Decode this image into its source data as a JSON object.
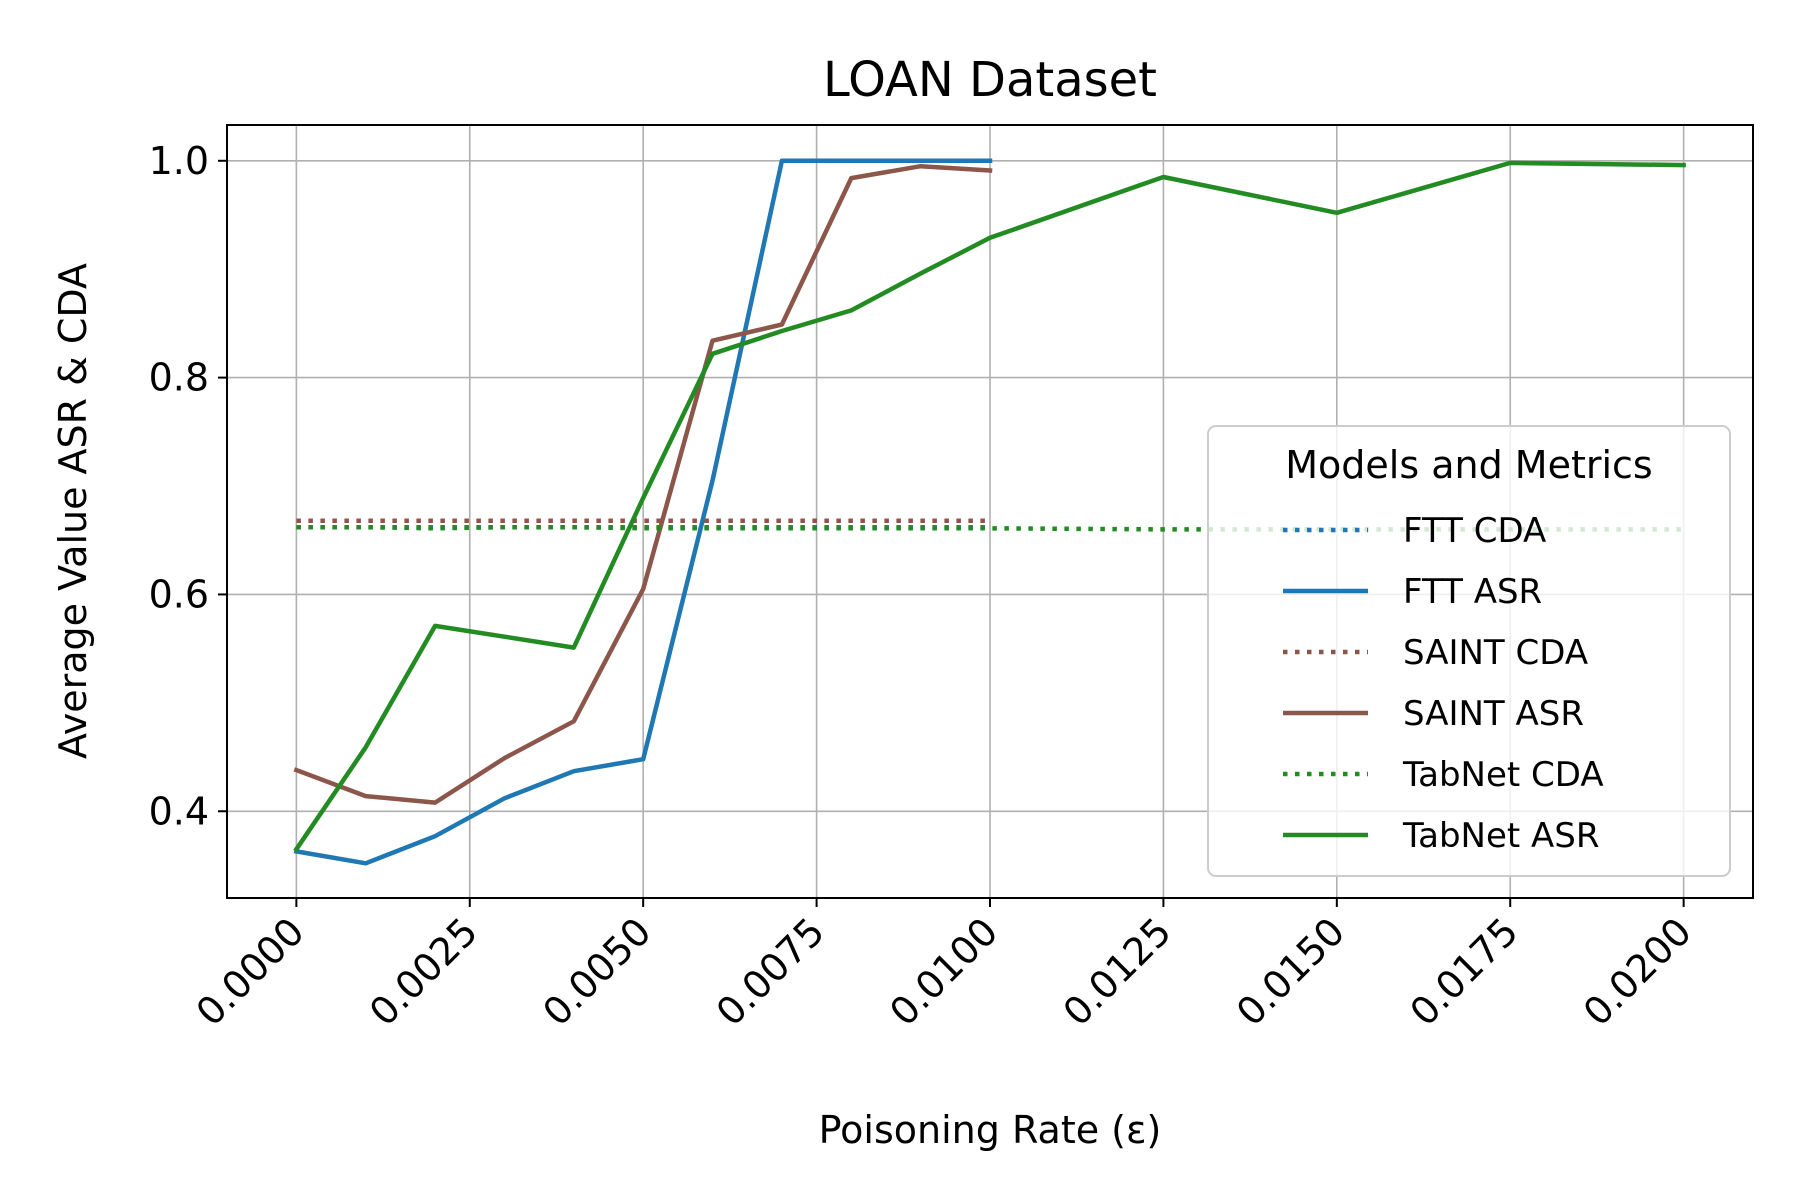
{
  "chart_data": {
    "type": "line",
    "title": "LOAN Dataset",
    "xlabel": "Poisoning Rate (ε)",
    "ylabel": "Average Value ASR & CDA",
    "xlim": [
      -0.001,
      0.021
    ],
    "ylim": [
      0.32,
      1.033
    ],
    "xticks": [
      0.0,
      0.0025,
      0.005,
      0.0075,
      0.01,
      0.0125,
      0.015,
      0.0175,
      0.02
    ],
    "xtick_labels": [
      "0.0000",
      "0.0025",
      "0.0050",
      "0.0075",
      "0.0100",
      "0.0125",
      "0.0150",
      "0.0175",
      "0.0200"
    ],
    "yticks": [
      0.4,
      0.6,
      0.8,
      1.0
    ],
    "ytick_labels": [
      "0.4",
      "0.6",
      "0.8",
      "1.0"
    ],
    "grid": true,
    "legend": {
      "title": "Models and Metrics",
      "placement": "center-right"
    },
    "series": [
      {
        "name": "FTT CDA",
        "style": "dotted",
        "color": "#1f77b4",
        "x": [
          0.0,
          0.001,
          0.002,
          0.003,
          0.004,
          0.005,
          0.006,
          0.007,
          0.008,
          0.009,
          0.01
        ],
        "y": [
          0.662,
          0.662,
          0.662,
          0.662,
          0.662,
          0.662,
          0.662,
          0.662,
          0.662,
          0.662,
          0.662
        ]
      },
      {
        "name": "FTT ASR",
        "style": "solid",
        "color": "#1f77b4",
        "x": [
          0.0,
          0.001,
          0.002,
          0.003,
          0.004,
          0.005,
          0.006,
          0.007,
          0.008,
          0.009,
          0.01
        ],
        "y": [
          0.363,
          0.352,
          0.377,
          0.412,
          0.437,
          0.448,
          0.705,
          1.0,
          1.0,
          1.0,
          1.0
        ]
      },
      {
        "name": "SAINT CDA",
        "style": "dotted",
        "color": "#8c564b",
        "x": [
          0.0,
          0.001,
          0.002,
          0.003,
          0.004,
          0.005,
          0.006,
          0.007,
          0.008,
          0.009,
          0.01
        ],
        "y": [
          0.668,
          0.668,
          0.668,
          0.668,
          0.668,
          0.668,
          0.668,
          0.668,
          0.668,
          0.668,
          0.668
        ]
      },
      {
        "name": "SAINT ASR",
        "style": "solid",
        "color": "#8c564b",
        "x": [
          0.0,
          0.001,
          0.002,
          0.003,
          0.004,
          0.005,
          0.006,
          0.007,
          0.008,
          0.009,
          0.01
        ],
        "y": [
          0.438,
          0.414,
          0.408,
          0.449,
          0.483,
          0.605,
          0.834,
          0.849,
          0.984,
          0.995,
          0.991
        ]
      },
      {
        "name": "TabNet CDA",
        "style": "dotted",
        "color": "#228b22",
        "x": [
          0.0,
          0.001,
          0.002,
          0.003,
          0.004,
          0.005,
          0.006,
          0.007,
          0.008,
          0.009,
          0.01,
          0.0125,
          0.015,
          0.0175,
          0.02
        ],
        "y": [
          0.662,
          0.662,
          0.661,
          0.662,
          0.662,
          0.661,
          0.661,
          0.661,
          0.661,
          0.661,
          0.661,
          0.66,
          0.66,
          0.66,
          0.66
        ]
      },
      {
        "name": "TabNet ASR",
        "style": "solid",
        "color": "#228b22",
        "x": [
          0.0,
          0.001,
          0.002,
          0.003,
          0.004,
          0.005,
          0.006,
          0.007,
          0.008,
          0.009,
          0.01,
          0.0125,
          0.015,
          0.0175,
          0.02
        ],
        "y": [
          0.365,
          0.459,
          0.571,
          0.561,
          0.551,
          0.689,
          0.822,
          0.843,
          0.862,
          0.896,
          0.929,
          0.985,
          0.952,
          0.998,
          0.996
        ]
      }
    ]
  }
}
